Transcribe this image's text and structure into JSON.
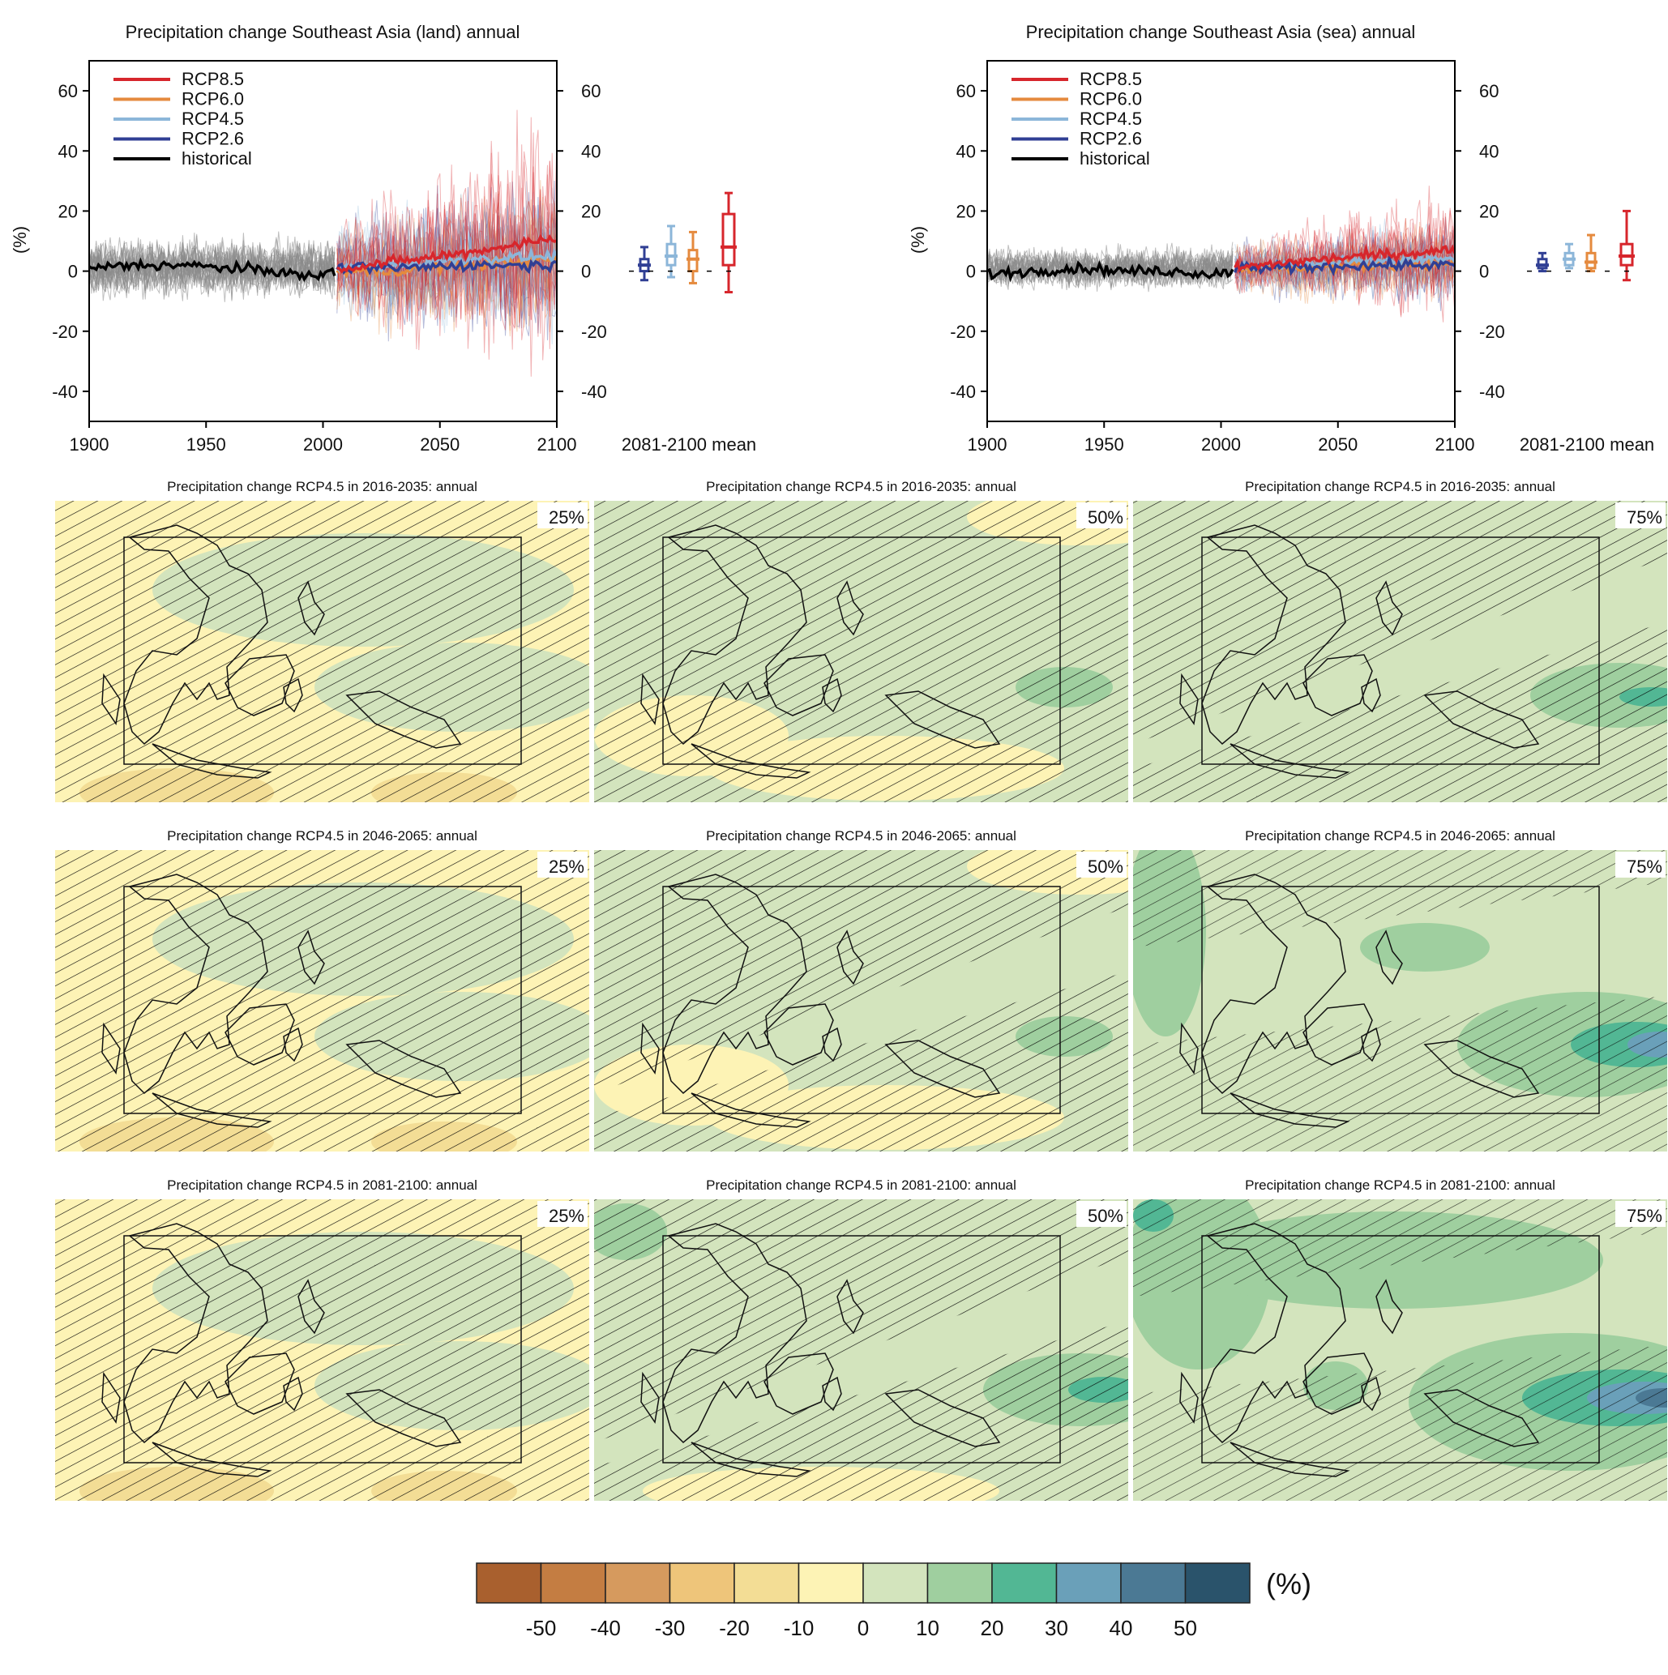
{
  "colors": {
    "rcp85": "#d7262c",
    "rcp60": "#e58a3e",
    "rcp45": "#8cb6d9",
    "rcp26": "#303f94",
    "historical": "#000000",
    "ensemble": "#8a8a8a",
    "scale": [
      "#a9602e",
      "#c47d42",
      "#d69a5e",
      "#eec57a",
      "#f3dd95",
      "#fdf3b5",
      "#d3e4bd",
      "#9fcf9f",
      "#52b794",
      "#6aa0b9",
      "#4b7994",
      "#2a536b"
    ]
  },
  "chart_data": [
    {
      "type": "line",
      "title": "Precipitation change Southeast Asia (land) annual",
      "ylabel": "(%)",
      "xlim": [
        1900,
        2100
      ],
      "ylim": [
        -50,
        70
      ],
      "xticks": [
        "1900",
        "1950",
        "2000",
        "2050",
        "2100"
      ],
      "yticks": [
        "60",
        "40",
        "20",
        "0",
        "-20",
        "-40"
      ],
      "legend": [
        "RCP8.5",
        "RCP6.0",
        "RCP4.5",
        "RCP2.6",
        "historical"
      ],
      "series": [
        {
          "name": "historical",
          "x": [
            1900,
            1920,
            1940,
            1960,
            1980,
            1995,
            2005
          ],
          "values": [
            1,
            2,
            2,
            1,
            0,
            -2,
            0
          ]
        },
        {
          "name": "RCP2.6",
          "x": [
            2006,
            2030,
            2060,
            2100
          ],
          "values": [
            1,
            1,
            2,
            2
          ]
        },
        {
          "name": "RCP4.5",
          "x": [
            2006,
            2030,
            2060,
            2100
          ],
          "values": [
            1,
            2,
            4,
            5
          ]
        },
        {
          "name": "RCP6.0",
          "x": [
            2006,
            2030,
            2060,
            2100
          ],
          "values": [
            0,
            0,
            2,
            4
          ]
        },
        {
          "name": "RCP8.5",
          "x": [
            2006,
            2030,
            2060,
            2100
          ],
          "values": [
            1,
            3,
            6,
            11
          ]
        }
      ],
      "box_label": "2081-2100 mean",
      "boxes": [
        {
          "name": "RCP2.6",
          "min": -3,
          "q1": 0,
          "median": 2,
          "q3": 4,
          "max": 8
        },
        {
          "name": "RCP4.5",
          "min": -2,
          "q1": 2,
          "median": 5,
          "q3": 9,
          "max": 15
        },
        {
          "name": "RCP6.0",
          "min": -4,
          "q1": 0,
          "median": 4,
          "q3": 7,
          "max": 13
        },
        {
          "name": "RCP8.5",
          "min": -7,
          "q1": 2,
          "median": 8,
          "q3": 19,
          "max": 26
        }
      ]
    },
    {
      "type": "line",
      "title": "Precipitation change Southeast Asia (sea) annual",
      "ylabel": "(%)",
      "xlim": [
        1900,
        2100
      ],
      "ylim": [
        -50,
        70
      ],
      "xticks": [
        "1900",
        "1950",
        "2000",
        "2050",
        "2100"
      ],
      "yticks": [
        "60",
        "40",
        "20",
        "0",
        "-20",
        "-40"
      ],
      "legend": [
        "RCP8.5",
        "RCP6.0",
        "RCP4.5",
        "RCP2.6",
        "historical"
      ],
      "series": [
        {
          "name": "historical",
          "x": [
            1900,
            1920,
            1940,
            1960,
            1980,
            1995,
            2005
          ],
          "values": [
            -1,
            0,
            1,
            0,
            0,
            -1,
            0
          ]
        },
        {
          "name": "RCP2.6",
          "x": [
            2006,
            2030,
            2060,
            2100
          ],
          "values": [
            1,
            1,
            2,
            2
          ]
        },
        {
          "name": "RCP4.5",
          "x": [
            2006,
            2030,
            2060,
            2100
          ],
          "values": [
            1,
            2,
            3,
            4
          ]
        },
        {
          "name": "RCP6.0",
          "x": [
            2006,
            2030,
            2060,
            2100
          ],
          "values": [
            1,
            1,
            2,
            3
          ]
        },
        {
          "name": "RCP8.5",
          "x": [
            2006,
            2030,
            2060,
            2100
          ],
          "values": [
            1,
            3,
            5,
            7
          ]
        }
      ],
      "box_label": "2081-2100 mean",
      "boxes": [
        {
          "name": "RCP2.6",
          "min": 0,
          "q1": 1,
          "median": 2,
          "q3": 4,
          "max": 6
        },
        {
          "name": "RCP4.5",
          "min": 1,
          "q1": 2,
          "median": 4,
          "q3": 6,
          "max": 9
        },
        {
          "name": "RCP6.0",
          "min": 0,
          "q1": 1,
          "median": 3,
          "q3": 6,
          "max": 12
        },
        {
          "name": "RCP8.5",
          "min": -3,
          "q1": 2,
          "median": 5,
          "q3": 9,
          "max": 20
        }
      ]
    },
    {
      "type": "heatmap",
      "maps": [
        {
          "title": "Precipitation change RCP4.5 in 2016-2035: annual",
          "label": "25%",
          "level": "negative",
          "hatch": "full"
        },
        {
          "title": "Precipitation change RCP4.5 in 2016-2035: annual",
          "label": "50%",
          "level": "neutral",
          "hatch": "full"
        },
        {
          "title": "Precipitation change RCP4.5 in 2016-2035: annual",
          "label": "75%",
          "level": "positive",
          "hatch": "partial"
        },
        {
          "title": "Precipitation change RCP4.5 in 2046-2065: annual",
          "label": "25%",
          "level": "negative",
          "hatch": "full"
        },
        {
          "title": "Precipitation change RCP4.5 in 2046-2065: annual",
          "label": "50%",
          "level": "neutral",
          "hatch": "partial"
        },
        {
          "title": "Precipitation change RCP4.5 in 2046-2065: annual",
          "label": "75%",
          "level": "strong",
          "hatch": "sparse"
        },
        {
          "title": "Precipitation change RCP4.5 in 2081-2100: annual",
          "label": "25%",
          "level": "negative",
          "hatch": "full"
        },
        {
          "title": "Precipitation change RCP4.5 in 2081-2100: annual",
          "label": "50%",
          "level": "moderate",
          "hatch": "partial"
        },
        {
          "title": "Precipitation change RCP4.5 in 2081-2100: annual",
          "label": "75%",
          "level": "strongest",
          "hatch": "sparse"
        }
      ],
      "colorbar": {
        "ticks": [
          "-50",
          "-40",
          "-30",
          "-20",
          "-10",
          "0",
          "10",
          "20",
          "30",
          "40",
          "50"
        ],
        "unit": "(%)"
      }
    }
  ]
}
